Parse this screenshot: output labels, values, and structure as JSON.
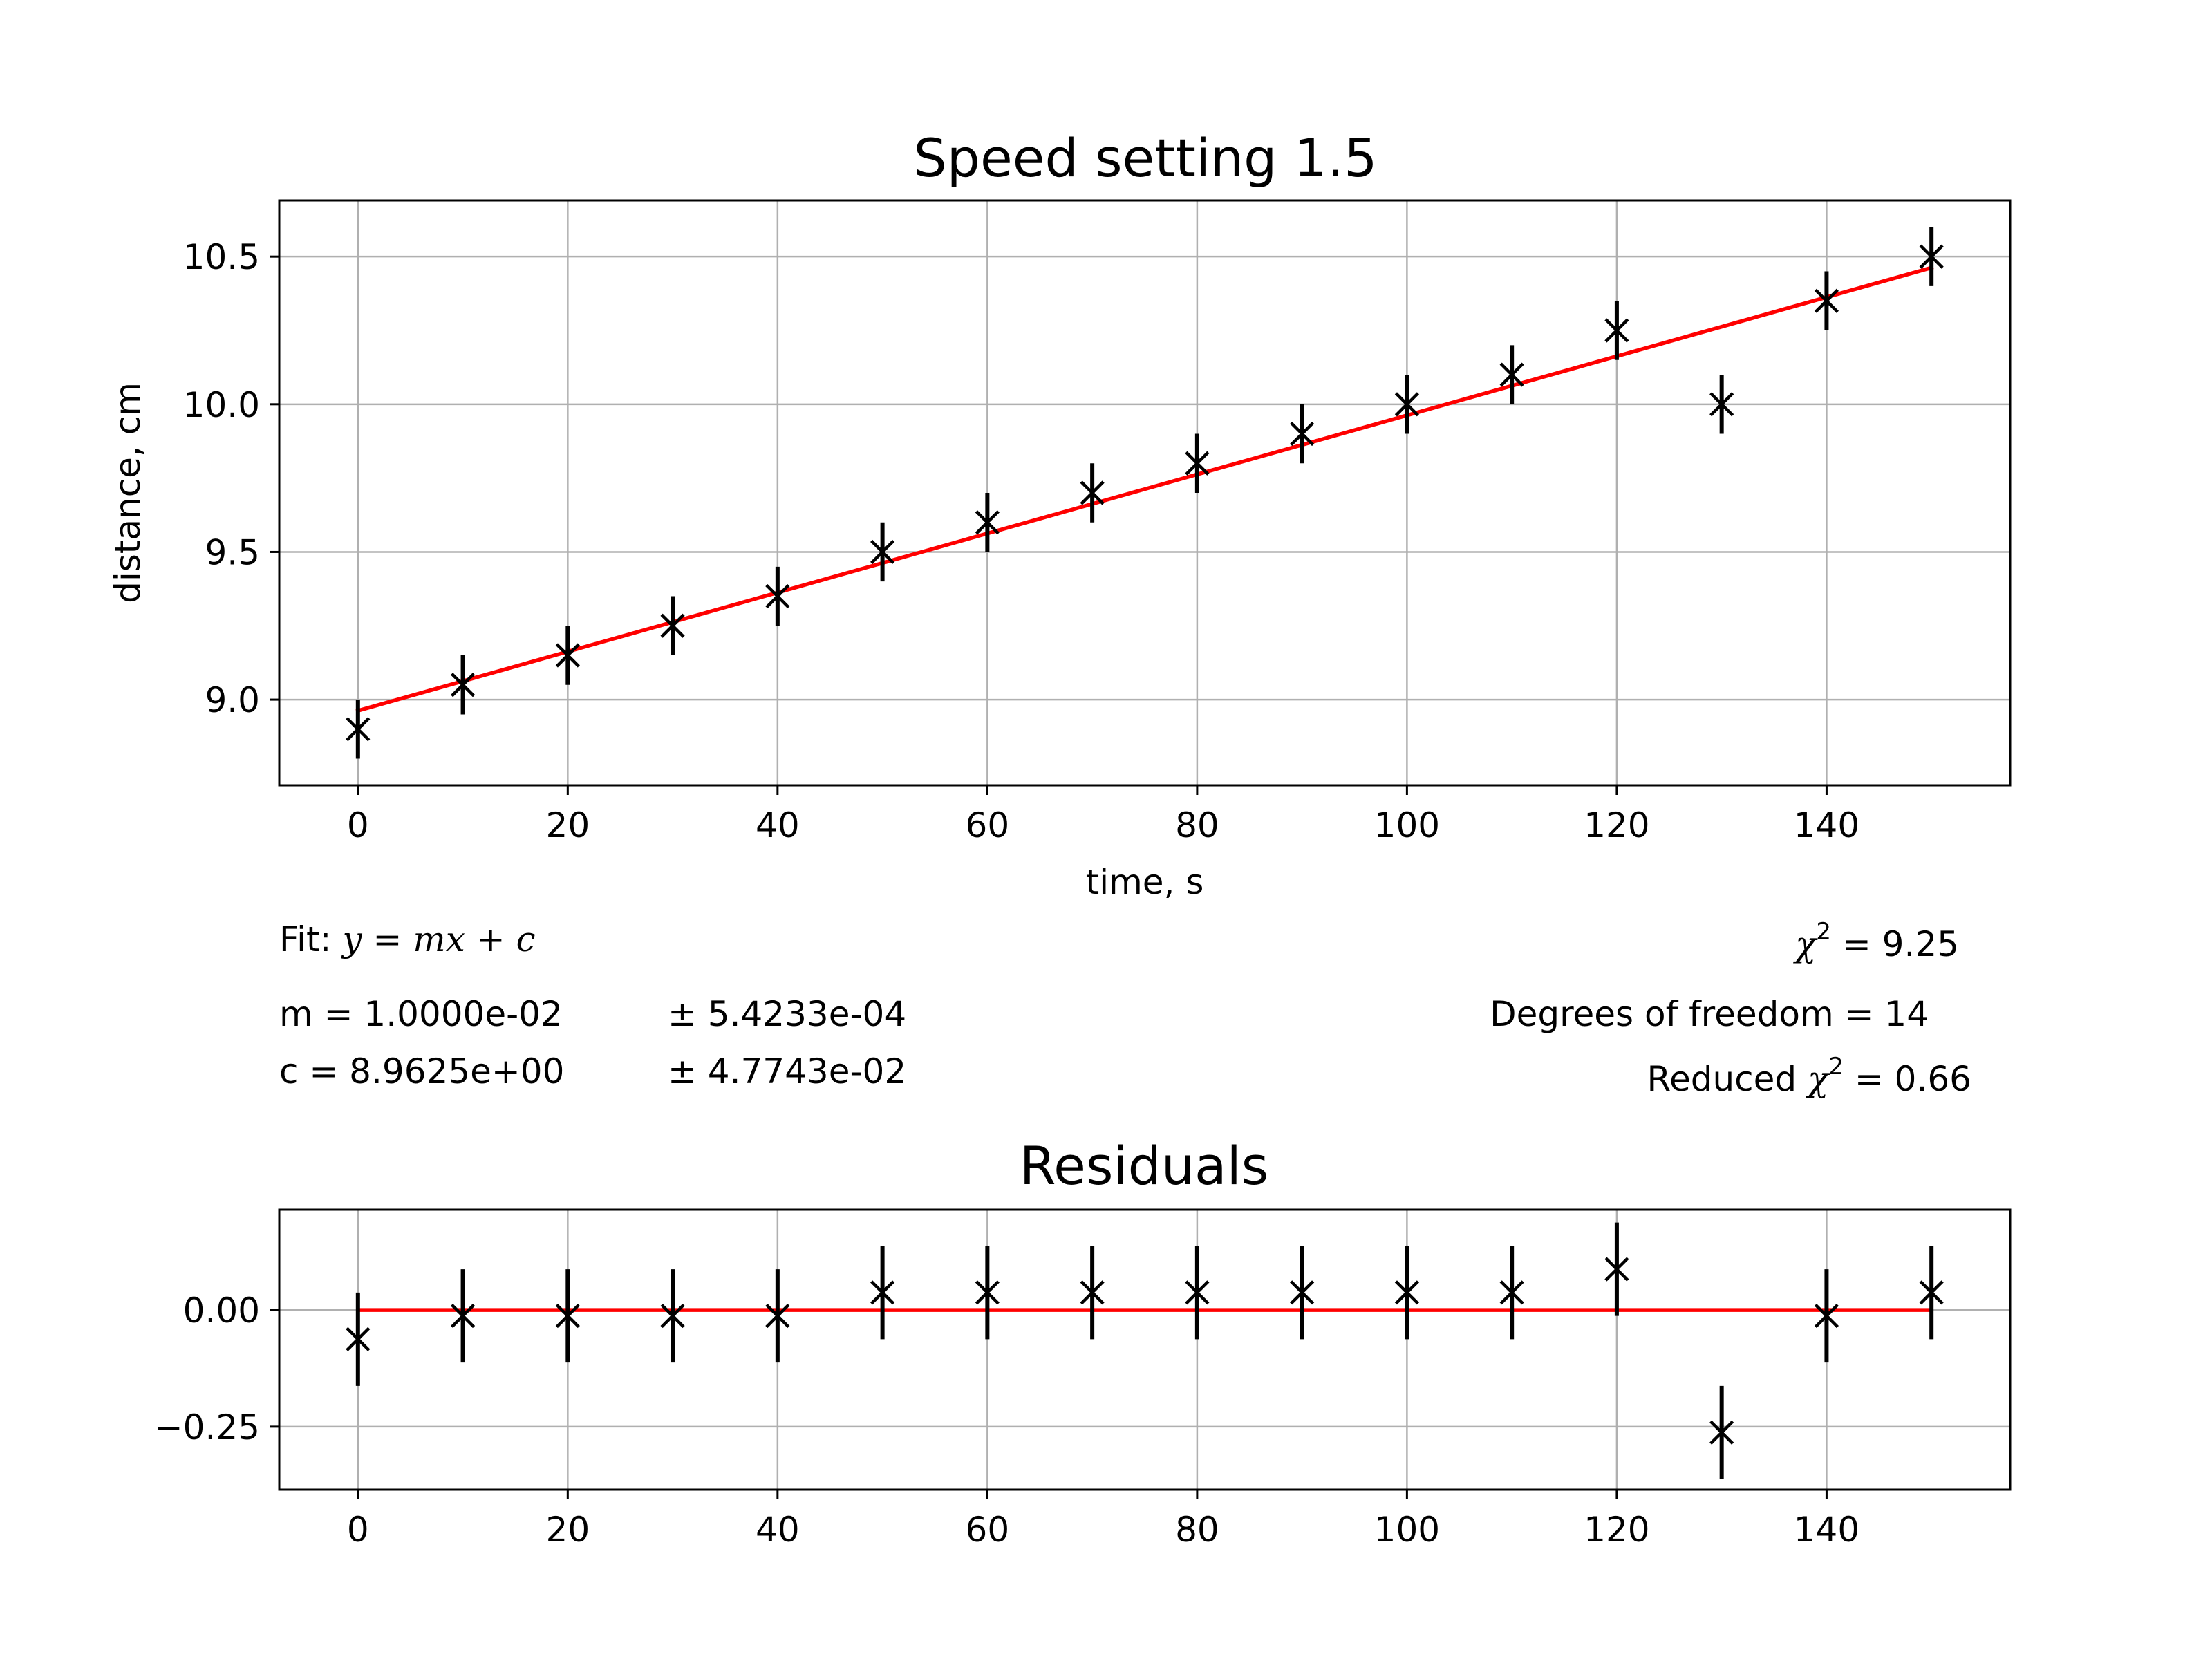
{
  "chart_data": [
    {
      "type": "scatter",
      "title": "Speed setting 1.5",
      "xlabel": "time, s",
      "ylabel": "distance, cm",
      "xlim": [
        -7.5,
        157.5
      ],
      "ylim": [
        8.71,
        10.69
      ],
      "xticks": [
        0,
        20,
        40,
        60,
        80,
        100,
        120,
        140
      ],
      "xtick_labels": [
        "0",
        "20",
        "40",
        "60",
        "80",
        "100",
        "120",
        "140"
      ],
      "yticks": [
        9.0,
        9.5,
        10.0,
        10.5
      ],
      "ytick_labels": [
        "9.0",
        "9.5",
        "10.0",
        "10.5"
      ],
      "grid": true,
      "series": [
        {
          "name": "data",
          "marker": "x",
          "color": "#000000",
          "x": [
            0,
            10,
            20,
            30,
            40,
            50,
            60,
            70,
            80,
            90,
            100,
            110,
            120,
            130,
            140,
            150
          ],
          "y": [
            8.9,
            9.05,
            9.15,
            9.25,
            9.35,
            9.5,
            9.6,
            9.7,
            9.8,
            9.9,
            10.0,
            10.1,
            10.25,
            10.0,
            10.35,
            10.5
          ],
          "yerr": [
            0.1,
            0.1,
            0.1,
            0.1,
            0.1,
            0.1,
            0.1,
            0.1,
            0.1,
            0.1,
            0.1,
            0.1,
            0.1,
            0.1,
            0.1,
            0.1
          ]
        },
        {
          "name": "fit",
          "type": "line",
          "color": "#ff0000",
          "x": [
            0,
            150
          ],
          "y": [
            8.9625,
            10.4625
          ]
        }
      ]
    },
    {
      "type": "scatter",
      "title": "Residuals",
      "xlim": [
        -7.5,
        157.5
      ],
      "ylim": [
        -0.385,
        0.215
      ],
      "xticks": [
        0,
        20,
        40,
        60,
        80,
        100,
        120,
        140
      ],
      "xtick_labels": [
        "0",
        "20",
        "40",
        "60",
        "80",
        "100",
        "120",
        "140"
      ],
      "yticks": [
        0.0,
        -0.25
      ],
      "ytick_labels": [
        "0.00",
        "−0.25"
      ],
      "grid": true,
      "series": [
        {
          "name": "residuals",
          "marker": "x",
          "color": "#000000",
          "x": [
            0,
            10,
            20,
            30,
            40,
            50,
            60,
            70,
            80,
            90,
            100,
            110,
            120,
            130,
            140,
            150
          ],
          "y": [
            -0.0625,
            -0.0125,
            -0.0125,
            -0.0125,
            -0.0125,
            0.0375,
            0.0375,
            0.0375,
            0.0375,
            0.0375,
            0.0375,
            0.0375,
            0.0875,
            -0.2625,
            -0.0125,
            0.0375
          ],
          "yerr": [
            0.1,
            0.1,
            0.1,
            0.1,
            0.1,
            0.1,
            0.1,
            0.1,
            0.1,
            0.1,
            0.1,
            0.1,
            0.1,
            0.1,
            0.1,
            0.1
          ]
        },
        {
          "name": "zero-line",
          "type": "line",
          "color": "#ff0000",
          "x": [
            0,
            150
          ],
          "y": [
            0,
            0
          ]
        }
      ]
    }
  ],
  "fit_info": {
    "fit_prefix": "Fit: ",
    "fit_equation": "y = mx + c",
    "m_label": "m = 1.0000e-02",
    "m_err": "± 5.4233e-04",
    "c_label": "c = 8.9625e+00",
    "c_err": "± 4.7743e-02",
    "chi_symbol": "χ",
    "sq": "2",
    "chi2_value": " = 9.25",
    "dof_label": "Degrees of freedom = 14",
    "reduced_prefix": "Reduced ",
    "reduced_value": " = 0.66"
  }
}
